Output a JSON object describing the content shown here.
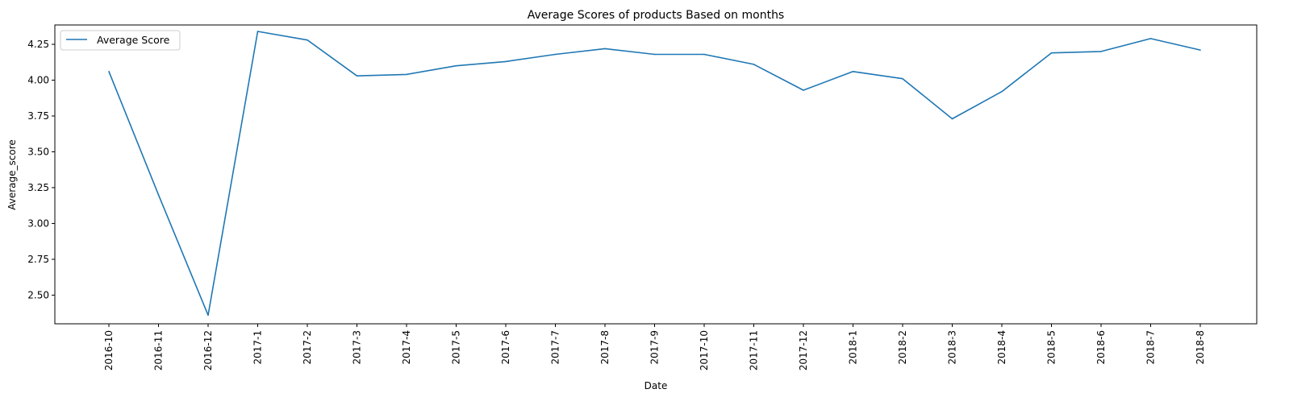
{
  "chart_data": {
    "type": "line",
    "title": "Average Scores of products Based on months",
    "xlabel": "Date",
    "ylabel": "Average_score",
    "x": [
      "2016-10",
      "2016-11",
      "2016-12",
      "2017-1",
      "2017-2",
      "2017-3",
      "2017-4",
      "2017-5",
      "2017-6",
      "2017-7",
      "2017-8",
      "2017-9",
      "2017-10",
      "2017-11",
      "2017-12",
      "2018-1",
      "2018-2",
      "2018-3",
      "2018-4",
      "2018-5",
      "2018-6",
      "2018-7",
      "2018-8"
    ],
    "series": [
      {
        "name": "Average Score",
        "color": "#1f77b4",
        "values": [
          4.06,
          3.2,
          2.36,
          4.34,
          4.28,
          4.03,
          4.04,
          4.1,
          4.13,
          4.18,
          4.22,
          4.18,
          4.18,
          4.11,
          3.93,
          4.06,
          4.01,
          3.73,
          3.92,
          4.19,
          4.2,
          4.29,
          4.21
        ]
      }
    ],
    "ylim": [
      2.3,
      4.385
    ],
    "yticks": [
      "2.50",
      "2.75",
      "3.00",
      "3.25",
      "3.50",
      "3.75",
      "4.00",
      "4.25"
    ],
    "grid": false,
    "legend_position": "top-left"
  }
}
